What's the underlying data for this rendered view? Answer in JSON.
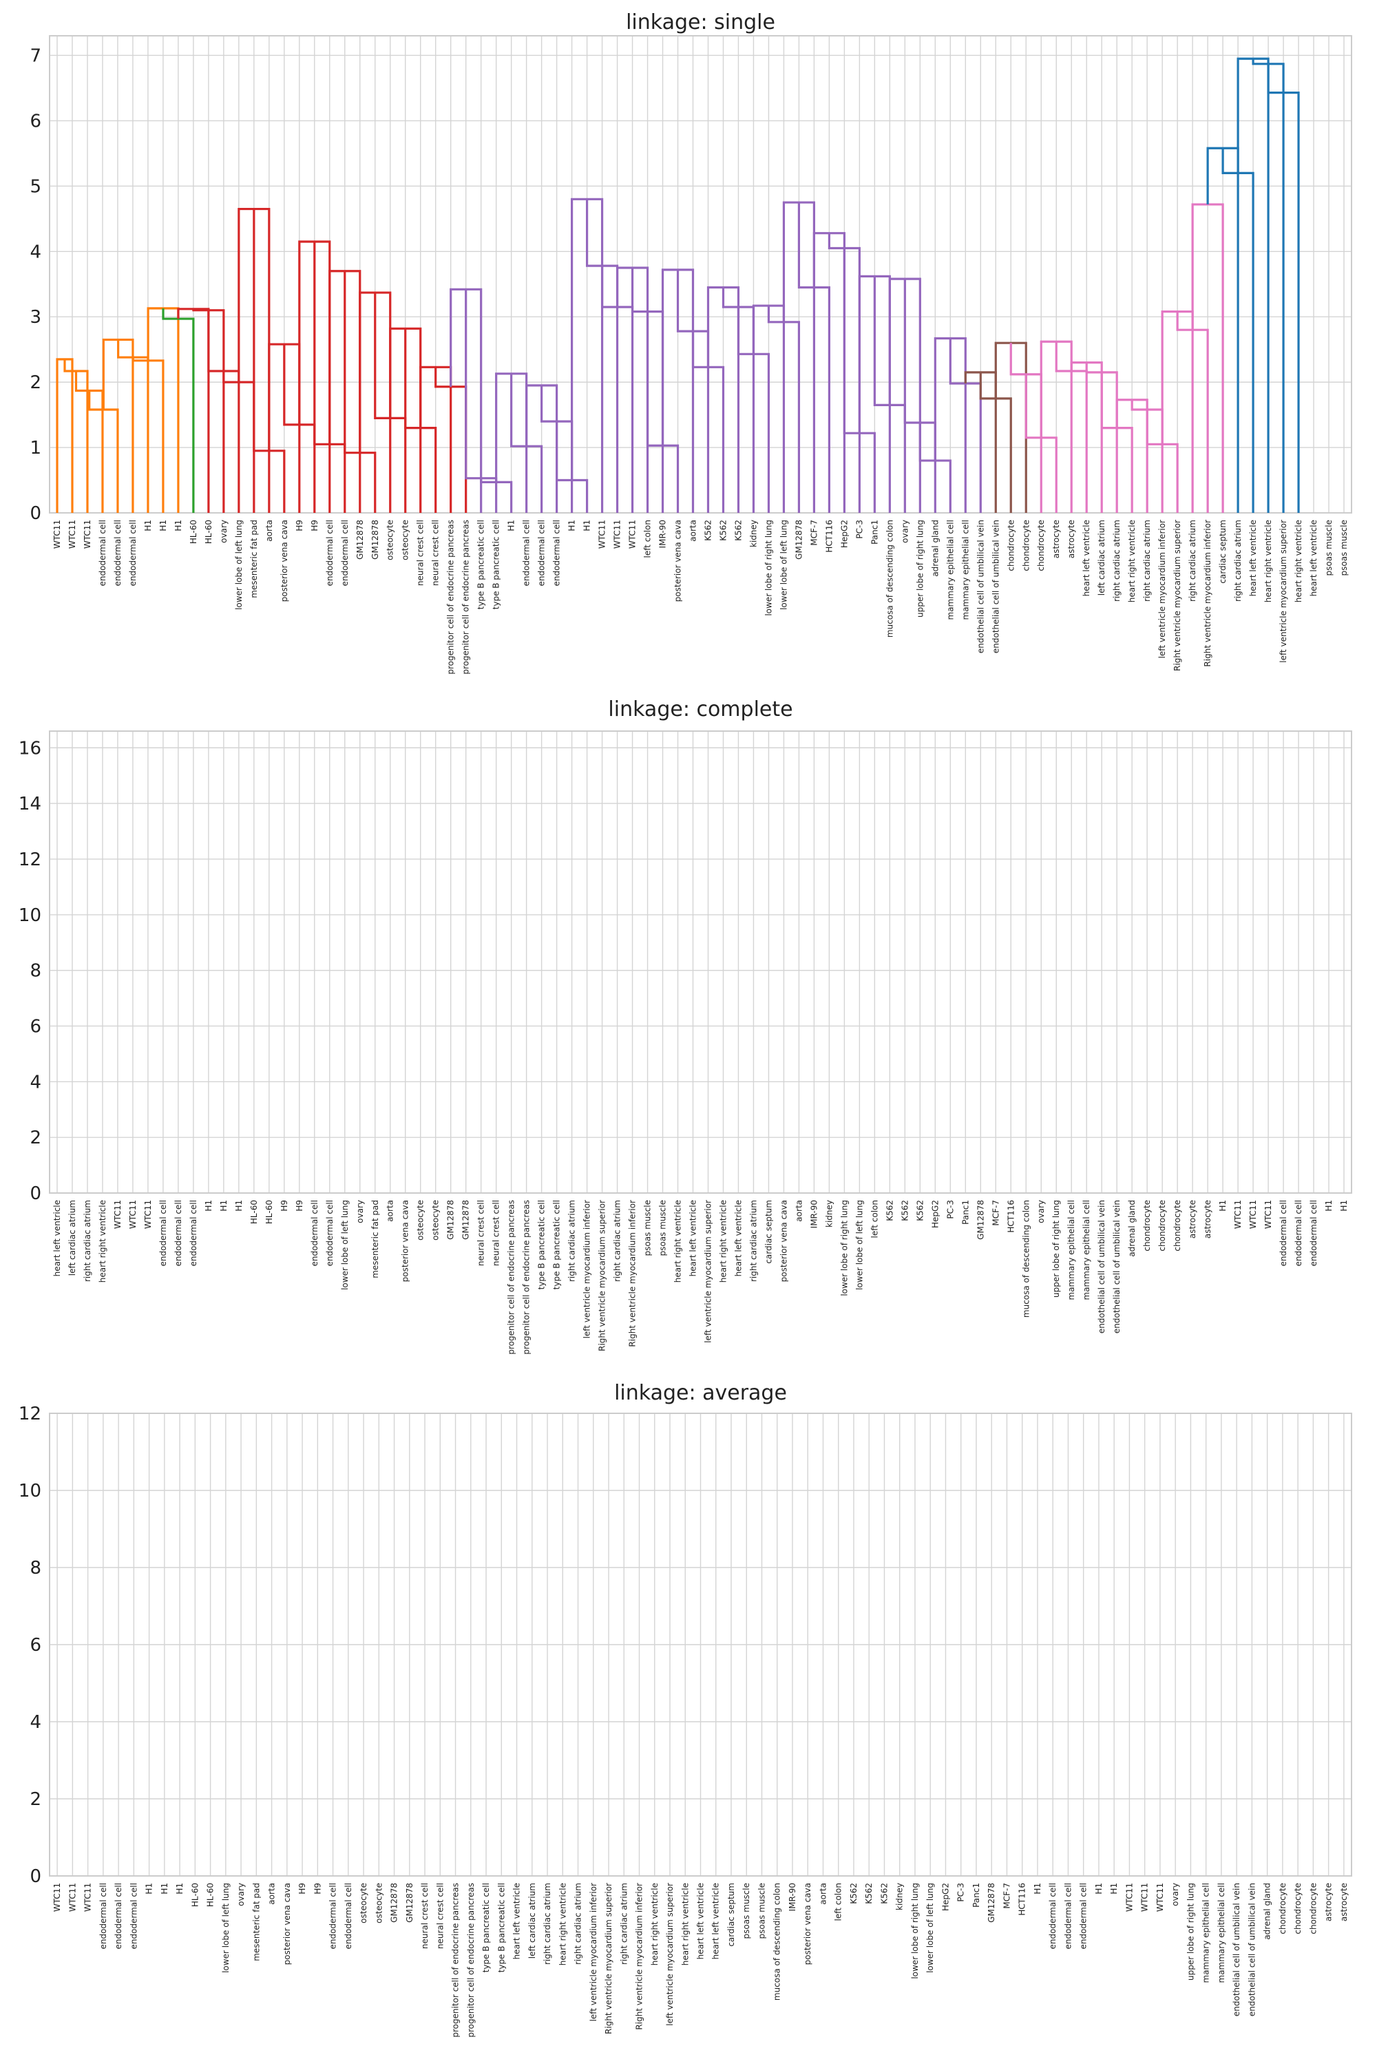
{
  "chart_data": [
    {
      "type": "dendrogram",
      "title": "linkage: single",
      "ylim": [
        0,
        7.3
      ],
      "yticks": [
        0,
        1,
        2,
        3,
        4,
        5,
        6,
        7
      ],
      "grid": true,
      "leaves": [
        "WTC11",
        "WTC11",
        "WTC11",
        "endodermal cell",
        "endodermal cell",
        "endodermal cell",
        "H1",
        "H1",
        "H1",
        "HL-60",
        "HL-60",
        "ovary",
        "lower lobe of left lung",
        "mesenteric fat pad",
        "aorta",
        "posterior vena cava",
        "H9",
        "H9",
        "endodermal cell",
        "endodermal cell",
        "GM12878",
        "GM12878",
        "osteocyte",
        "osteocyte",
        "neural crest cell",
        "neural crest cell",
        "progenitor cell of endocrine pancreas",
        "progenitor cell of endocrine pancreas",
        "type B pancreatic cell",
        "type B pancreatic cell",
        "H1",
        "endodermal cell",
        "endodermal cell",
        "endodermal cell",
        "H1",
        "H1",
        "WTC11",
        "WTC11",
        "WTC11",
        "left colon",
        "IMR-90",
        "posterior vena cava",
        "aorta",
        "K562",
        "K562",
        "K562",
        "kidney",
        "lower lobe of right lung",
        "lower lobe of left lung",
        "GM12878",
        "MCF-7",
        "HCT116",
        "HepG2",
        "PC-3",
        "Panc1",
        "mucosa of descending colon",
        "ovary",
        "upper lobe of right lung",
        "adrenal gland",
        "mammary epithelial cell",
        "mammary epithelial cell",
        "endothelial cell of umbilical vein",
        "endothelial cell of umbilical vein",
        "chondrocyte",
        "chondrocyte",
        "chondrocyte",
        "astrocyte",
        "astrocyte",
        "heart left ventricle",
        "left cardiac atrium",
        "right cardiac atrium",
        "heart right ventricle",
        "right cardiac atrium",
        "left ventricle myocardium inferior",
        "Right ventricle myocardium superior",
        "right cardiac atrium",
        "Right ventricle myocardium inferior",
        "cardiac septum",
        "right cardiac atrium",
        "heart left ventricle",
        "heart right ventricle",
        "left ventricle myocardium superior",
        "heart right ventricle",
        "heart left ventricle",
        "psoas muscle",
        "psoas muscle"
      ],
      "links": [
        [
          0,
          1,
          2.35,
          "#ff7f0e"
        ],
        [
          1,
          2,
          2.17,
          "#ff7f0e"
        ],
        [
          2,
          3,
          1.87,
          "#ff7f0e"
        ],
        [
          3,
          4,
          1.58,
          "#ff7f0e"
        ],
        [
          4,
          5,
          2.65,
          "#ff7f0e"
        ],
        [
          5,
          6,
          2.38,
          "#ff7f0e"
        ],
        [
          6,
          7,
          2.33,
          "#ff7f0e"
        ],
        [
          7,
          8,
          3.13,
          "#ff7f0e"
        ],
        [
          8,
          9,
          2.97,
          "#2ca02c"
        ],
        [
          9,
          10,
          3.12,
          "#d62728"
        ],
        [
          10,
          11,
          3.1,
          "#d62728"
        ],
        [
          11,
          12,
          2.17,
          "#d62728"
        ],
        [
          12,
          13,
          2.0,
          "#d62728"
        ],
        [
          13,
          14,
          4.65,
          "#d62728"
        ],
        [
          14,
          15,
          0.95,
          "#d62728"
        ],
        [
          15,
          16,
          2.58,
          "#d62728"
        ],
        [
          16,
          17,
          1.35,
          "#d62728"
        ],
        [
          17,
          18,
          4.15,
          "#d62728"
        ],
        [
          18,
          19,
          1.05,
          "#d62728"
        ],
        [
          19,
          20,
          3.7,
          "#d62728"
        ],
        [
          20,
          21,
          0.92,
          "#d62728"
        ],
        [
          21,
          22,
          3.37,
          "#d62728"
        ],
        [
          22,
          23,
          1.45,
          "#d62728"
        ],
        [
          23,
          24,
          2.82,
          "#d62728"
        ],
        [
          24,
          25,
          1.3,
          "#d62728"
        ],
        [
          25,
          26,
          2.23,
          "#d62728"
        ],
        [
          26,
          27,
          1.93,
          "#d62728"
        ],
        [
          27,
          28,
          3.42,
          "#9467bd"
        ],
        [
          28,
          29,
          0.53,
          "#9467bd"
        ],
        [
          29,
          30,
          0.47,
          "#9467bd"
        ],
        [
          30,
          31,
          2.13,
          "#9467bd"
        ],
        [
          31,
          32,
          1.02,
          "#9467bd"
        ],
        [
          32,
          33,
          1.95,
          "#9467bd"
        ],
        [
          33,
          34,
          1.4,
          "#9467bd"
        ],
        [
          34,
          35,
          0.5,
          "#9467bd"
        ],
        [
          35,
          36,
          4.8,
          "#9467bd"
        ],
        [
          36,
          37,
          3.78,
          "#9467bd"
        ],
        [
          37,
          38,
          3.15,
          "#9467bd"
        ],
        [
          38,
          39,
          3.75,
          "#9467bd"
        ],
        [
          39,
          40,
          3.08,
          "#9467bd"
        ],
        [
          40,
          41,
          1.03,
          "#9467bd"
        ],
        [
          41,
          42,
          3.72,
          "#9467bd"
        ],
        [
          42,
          43,
          2.78,
          "#9467bd"
        ],
        [
          43,
          44,
          2.23,
          "#9467bd"
        ],
        [
          44,
          45,
          3.45,
          "#9467bd"
        ],
        [
          45,
          46,
          3.15,
          "#9467bd"
        ],
        [
          46,
          47,
          2.43,
          "#9467bd"
        ],
        [
          47,
          48,
          3.17,
          "#9467bd"
        ],
        [
          48,
          49,
          2.92,
          "#9467bd"
        ],
        [
          49,
          50,
          4.75,
          "#9467bd"
        ],
        [
          50,
          51,
          3.45,
          "#9467bd"
        ],
        [
          51,
          52,
          4.28,
          "#9467bd"
        ],
        [
          52,
          53,
          4.05,
          "#9467bd"
        ],
        [
          53,
          54,
          1.22,
          "#9467bd"
        ],
        [
          54,
          55,
          3.62,
          "#9467bd"
        ],
        [
          55,
          56,
          1.65,
          "#9467bd"
        ],
        [
          56,
          57,
          3.58,
          "#9467bd"
        ],
        [
          57,
          58,
          1.38,
          "#9467bd"
        ],
        [
          58,
          59,
          0.8,
          "#9467bd"
        ],
        [
          59,
          60,
          2.67,
          "#9467bd"
        ],
        [
          60,
          61,
          1.98,
          "#9467bd"
        ],
        [
          61,
          62,
          2.15,
          "#8c564b"
        ],
        [
          62,
          63,
          1.75,
          "#8c564b"
        ],
        [
          63,
          64,
          2.6,
          "#8c564b"
        ],
        [
          64,
          65,
          2.12,
          "#e377c2"
        ],
        [
          65,
          66,
          1.15,
          "#e377c2"
        ],
        [
          66,
          67,
          2.62,
          "#e377c2"
        ],
        [
          67,
          68,
          2.17,
          "#e377c2"
        ],
        [
          68,
          69,
          2.3,
          "#e377c2"
        ],
        [
          69,
          70,
          2.15,
          "#e377c2"
        ],
        [
          70,
          71,
          1.3,
          "#e377c2"
        ],
        [
          71,
          72,
          1.73,
          "#e377c2"
        ],
        [
          72,
          73,
          1.58,
          "#e377c2"
        ],
        [
          73,
          74,
          1.05,
          "#e377c2"
        ],
        [
          74,
          75,
          3.08,
          "#e377c2"
        ],
        [
          75,
          76,
          2.8,
          "#e377c2"
        ],
        [
          76,
          77,
          4.72,
          "#e377c2"
        ],
        [
          77,
          78,
          5.58,
          "#1f77b4"
        ],
        [
          78,
          79,
          5.2,
          "#1f77b4"
        ],
        [
          79,
          80,
          6.95,
          "#1f77b4"
        ],
        [
          80,
          81,
          6.87,
          "#1f77b4"
        ],
        [
          81,
          82,
          6.43,
          "#1f77b4"
        ]
      ],
      "root": 82,
      "tree_method": "merge-by-index"
    },
    {
      "type": "dendrogram",
      "title": "linkage: complete",
      "ylim": [
        0,
        16.6
      ],
      "yticks": [
        0,
        2,
        4,
        6,
        8,
        10,
        12,
        14,
        16
      ],
      "grid": true,
      "leaves": [
        "heart left ventricle",
        "left cardiac atrium",
        "right cardiac atrium",
        "heart right ventricle",
        "WTC11",
        "WTC11",
        "WTC11",
        "endodermal cell",
        "endodermal cell",
        "endodermal cell",
        "H1",
        "H1",
        "H1",
        "HL-60",
        "HL-60",
        "H9",
        "H9",
        "endodermal cell",
        "endodermal cell",
        "lower lobe of left lung",
        "ovary",
        "mesenteric fat pad",
        "aorta",
        "posterior vena cava",
        "osteocyte",
        "osteocyte",
        "GM12878",
        "GM12878",
        "neural crest cell",
        "neural crest cell",
        "progenitor cell of endocrine pancreas",
        "progenitor cell of endocrine pancreas",
        "type B pancreatic cell",
        "type B pancreatic cell",
        "right cardiac atrium",
        "left ventricle myocardium inferior",
        "Right ventricle myocardium superior",
        "right cardiac atrium",
        "Right ventricle myocardium inferior",
        "psoas muscle",
        "psoas muscle",
        "heart right ventricle",
        "heart left ventricle",
        "left ventricle myocardium superior",
        "heart right ventricle",
        "heart left ventricle",
        "right cardiac atrium",
        "cardiac septum",
        "posterior vena cava",
        "aorta",
        "IMR-90",
        "kidney",
        "lower lobe of right lung",
        "lower lobe of left lung",
        "left colon",
        "K562",
        "K562",
        "K562",
        "HepG2",
        "PC-3",
        "Panc1",
        "GM12878",
        "MCF-7",
        "HCT116",
        "mucosa of descending colon",
        "ovary",
        "upper lobe of right lung",
        "mammary epithelial cell",
        "mammary epithelial cell",
        "endothelial cell of umbilical vein",
        "endothelial cell of umbilical vein",
        "adrenal gland",
        "chondrocyte",
        "chondrocyte",
        "chondrocyte",
        "astrocyte",
        "astrocyte",
        "H1",
        "WTC11",
        "WTC11",
        "WTC11",
        "endodermal cell",
        "endodermal cell",
        "endodermal cell",
        "H1",
        "H1"
      ],
      "links": [],
      "root": null,
      "tree_method": "merge-by-index"
    },
    {
      "type": "dendrogram",
      "title": "linkage: average",
      "ylim": [
        0,
        12
      ],
      "yticks": [
        0,
        2,
        4,
        6,
        8,
        10,
        12
      ],
      "grid": true,
      "leaves": [
        "WTC11",
        "WTC11",
        "WTC11",
        "endodermal cell",
        "endodermal cell",
        "endodermal cell",
        "H1",
        "H1",
        "H1",
        "HL-60",
        "HL-60",
        "lower lobe of left lung",
        "ovary",
        "mesenteric fat pad",
        "aorta",
        "posterior vena cava",
        "H9",
        "H9",
        "endodermal cell",
        "endodermal cell",
        "osteocyte",
        "osteocyte",
        "GM12878",
        "GM12878",
        "neural crest cell",
        "neural crest cell",
        "progenitor cell of endocrine pancreas",
        "progenitor cell of endocrine pancreas",
        "type B pancreatic cell",
        "type B pancreatic cell",
        "heart left ventricle",
        "left cardiac atrium",
        "right cardiac atrium",
        "heart right ventricle",
        "right cardiac atrium",
        "left ventricle myocardium inferior",
        "Right ventricle myocardium superior",
        "right cardiac atrium",
        "Right ventricle myocardium inferior",
        "heart right ventricle",
        "left ventricle myocardium superior",
        "heart right ventricle",
        "heart left ventricle",
        "heart left ventricle",
        "cardiac septum",
        "psoas muscle",
        "psoas muscle",
        "mucosa of descending colon",
        "IMR-90",
        "posterior vena cava",
        "aorta",
        "left colon",
        "K562",
        "K562",
        "K562",
        "kidney",
        "lower lobe of right lung",
        "lower lobe of left lung",
        "HepG2",
        "PC-3",
        "Panc1",
        "GM12878",
        "MCF-7",
        "HCT116",
        "H1",
        "endodermal cell",
        "endodermal cell",
        "endodermal cell",
        "H1",
        "H1",
        "WTC11",
        "WTC11",
        "WTC11",
        "ovary",
        "upper lobe of right lung",
        "mammary epithelial cell",
        "mammary epithelial cell",
        "endothelial cell of umbilical vein",
        "endothelial cell of umbilical vein",
        "adrenal gland",
        "chondrocyte",
        "chondrocyte",
        "chondrocyte",
        "astrocyte",
        "astrocyte"
      ],
      "links": [],
      "root": null,
      "tree_method": "merge-by-index"
    }
  ]
}
